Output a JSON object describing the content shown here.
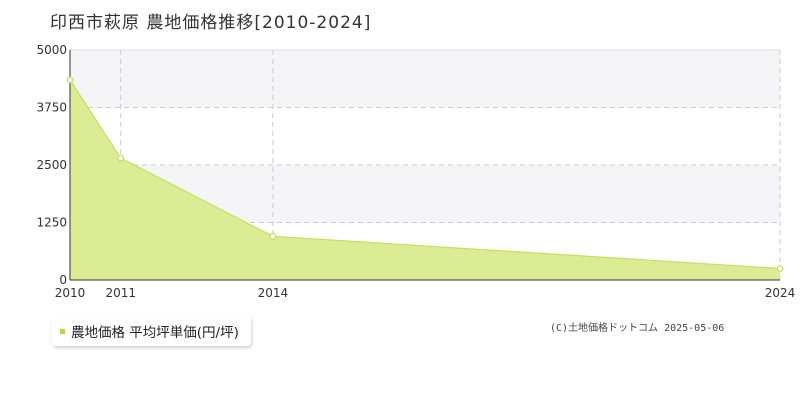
{
  "title": "印西市萩原 農地価格推移[2010-2024]",
  "legend": {
    "label": "農地価格 平均坪単価(円/坪)"
  },
  "copyright": "(C)土地価格ドットコム 2025-05-06",
  "colors": {
    "area_fill": "#dcec94",
    "area_stroke": "#c3e05c",
    "point_fill": "#ffffff",
    "point_stroke": "#c3e05c",
    "legend_marker": "#b5d930",
    "grid": "#cccccc",
    "axis": "#333333",
    "band": "#f5f5f7"
  },
  "chart_data": {
    "type": "area",
    "x": [
      2010,
      2011,
      2014,
      2024
    ],
    "x_tick_labels": [
      "2010",
      "2011",
      "2014",
      "2024"
    ],
    "series": [
      {
        "name": "農地価格 平均坪単価(円/坪)",
        "values": [
          4350,
          2650,
          950,
          250
        ]
      }
    ],
    "y_ticks": [
      0,
      1250,
      2500,
      3750,
      5000
    ],
    "y_tick_labels": [
      "0",
      "1250",
      "2500",
      "3750",
      "5000"
    ],
    "ylim": [
      0,
      5000
    ],
    "x_axis": "category",
    "grid": true,
    "legend_position": "bottom-left"
  }
}
